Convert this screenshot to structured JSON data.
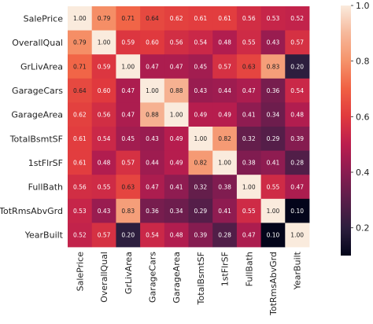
{
  "chart_data": {
    "type": "heatmap",
    "title": "",
    "xlabel": "",
    "ylabel": "",
    "variables": [
      "SalePrice",
      "OverallQual",
      "GrLivArea",
      "GarageCars",
      "GarageArea",
      "TotalBsmtSF",
      "1stFlrSF",
      "FullBath",
      "TotRmsAbvGrd",
      "YearBuilt"
    ],
    "x_categories": [
      "SalePrice",
      "OverallQual",
      "GrLivArea",
      "GarageCars",
      "GarageArea",
      "TotalBsmtSF",
      "1stFlrSF",
      "FullBath",
      "TotRmsAbvGrd",
      "YearBuilt"
    ],
    "y_categories": [
      "SalePrice",
      "OverallQual",
      "GrLivArea",
      "GarageCars",
      "GarageArea",
      "TotalBsmtSF",
      "1stFlrSF",
      "FullBath",
      "TotRmsAbvGrd",
      "YearBuilt"
    ],
    "values": [
      [
        1.0,
        0.79,
        0.71,
        0.64,
        0.62,
        0.61,
        0.61,
        0.56,
        0.53,
        0.52
      ],
      [
        0.79,
        1.0,
        0.59,
        0.6,
        0.56,
        0.54,
        0.48,
        0.55,
        0.43,
        0.57
      ],
      [
        0.71,
        0.59,
        1.0,
        0.47,
        0.47,
        0.45,
        0.57,
        0.63,
        0.83,
        0.2
      ],
      [
        0.64,
        0.6,
        0.47,
        1.0,
        0.88,
        0.43,
        0.44,
        0.47,
        0.36,
        0.54
      ],
      [
        0.62,
        0.56,
        0.47,
        0.88,
        1.0,
        0.49,
        0.49,
        0.41,
        0.34,
        0.48
      ],
      [
        0.61,
        0.54,
        0.45,
        0.43,
        0.49,
        1.0,
        0.82,
        0.32,
        0.29,
        0.39
      ],
      [
        0.61,
        0.48,
        0.57,
        0.44,
        0.49,
        0.82,
        1.0,
        0.38,
        0.41,
        0.28
      ],
      [
        0.56,
        0.55,
        0.63,
        0.47,
        0.41,
        0.32,
        0.38,
        1.0,
        0.55,
        0.47
      ],
      [
        0.53,
        0.43,
        0.83,
        0.36,
        0.34,
        0.29,
        0.41,
        0.55,
        1.0,
        0.1
      ],
      [
        0.52,
        0.57,
        0.2,
        0.54,
        0.48,
        0.39,
        0.28,
        0.47,
        0.1,
        1.0
      ]
    ],
    "cell_labels": [
      [
        "1.00",
        "0.79",
        "0.71",
        "0.64",
        "0.62",
        "0.61",
        "0.61",
        "0.56",
        "0.53",
        "0.52"
      ],
      [
        "0.79",
        "1.00",
        "0.59",
        "0.60",
        "0.56",
        "0.54",
        "0.48",
        "0.55",
        "0.43",
        "0.57"
      ],
      [
        "0.71",
        "0.59",
        "1.00",
        "0.47",
        "0.47",
        "0.45",
        "0.57",
        "0.63",
        "0.83",
        "0.20"
      ],
      [
        "0.64",
        "0.60",
        "0.47",
        "1.00",
        "0.88",
        "0.43",
        "0.44",
        "0.47",
        "0.36",
        "0.54"
      ],
      [
        "0.62",
        "0.56",
        "0.47",
        "0.88",
        "1.00",
        "0.49",
        "0.49",
        "0.41",
        "0.34",
        "0.48"
      ],
      [
        "0.61",
        "0.54",
        "0.45",
        "0.43",
        "0.49",
        "1.00",
        "0.82",
        "0.32",
        "0.29",
        "0.39"
      ],
      [
        "0.61",
        "0.48",
        "0.57",
        "0.44",
        "0.49",
        "0.82",
        "1.00",
        "0.38",
        "0.41",
        "0.28"
      ],
      [
        "0.56",
        "0.55",
        "0.63",
        "0.47",
        "0.41",
        "0.32",
        "0.38",
        "1.00",
        "0.55",
        "0.47"
      ],
      [
        "0.53",
        "0.43",
        "0.83",
        "0.36",
        "0.34",
        "0.29",
        "0.41",
        "0.55",
        "1.00",
        "0.10"
      ],
      [
        "0.52",
        "0.57",
        "0.20",
        "0.54",
        "0.48",
        "0.39",
        "0.28",
        "0.47",
        "0.10",
        "1.00"
      ]
    ],
    "colorbar": {
      "range": [
        0.1,
        1.0
      ],
      "ticks": [
        0.2,
        0.4,
        0.6,
        0.8,
        1.0
      ],
      "tick_labels": [
        "0.2",
        "0.4",
        "0.6",
        "0.8",
        "1.0"
      ],
      "colormap": "rocket",
      "stops": [
        "#03051a",
        "#2d1e3e",
        "#5a1e4a",
        "#8a1c51",
        "#bb1d4e",
        "#e0393e",
        "#f06043",
        "#f5936a",
        "#f6b89b",
        "#faebdd"
      ]
    },
    "grid": false,
    "legend": "colorbar-right"
  }
}
